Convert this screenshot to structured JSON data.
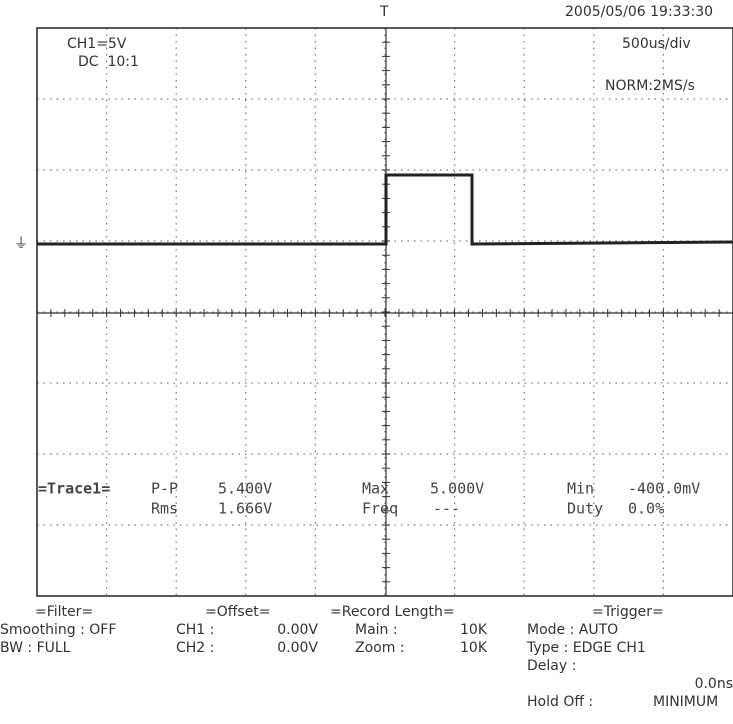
{
  "header": {
    "datetime": "2005/05/06 19:33:30",
    "channel": "CH1=5V",
    "coupling": "DC  10:1",
    "timebase": "500us/div",
    "sampling": "NORM:2MS/s"
  },
  "measurements": {
    "title": "=Trace1=",
    "pp_label": "P-P",
    "pp_value": "5.400V",
    "rms_label": "Rms",
    "rms_value": "1.666V",
    "max_label": "Max",
    "max_value": "5.000V",
    "freq_label": "Freq",
    "freq_value": "---",
    "min_label": "Min",
    "min_value": "-400.0mV",
    "duty_label": "Duty",
    "duty_value": "0.0%"
  },
  "filter": {
    "title": "=Filter=",
    "smoothing": "Smoothing : OFF",
    "bw": "BW : FULL"
  },
  "offset": {
    "title": "=Offset=",
    "ch1_label": "CH1 :",
    "ch1_value": "0.00V",
    "ch2_label": "CH2 :",
    "ch2_value": "0.00V"
  },
  "record": {
    "title": "=Record Length=",
    "main_label": "Main :",
    "main_value": "10K",
    "zoom_label": "Zoom :",
    "zoom_value": "10K"
  },
  "trigger": {
    "title": "=Trigger=",
    "mode": "Mode : AUTO",
    "type": "Type : EDGE CH1",
    "delay_label": "Delay :",
    "delay_value": "0.0ns",
    "holdoff_label": "Hold Off :",
    "holdoff_value": "MINIMUM"
  }
}
